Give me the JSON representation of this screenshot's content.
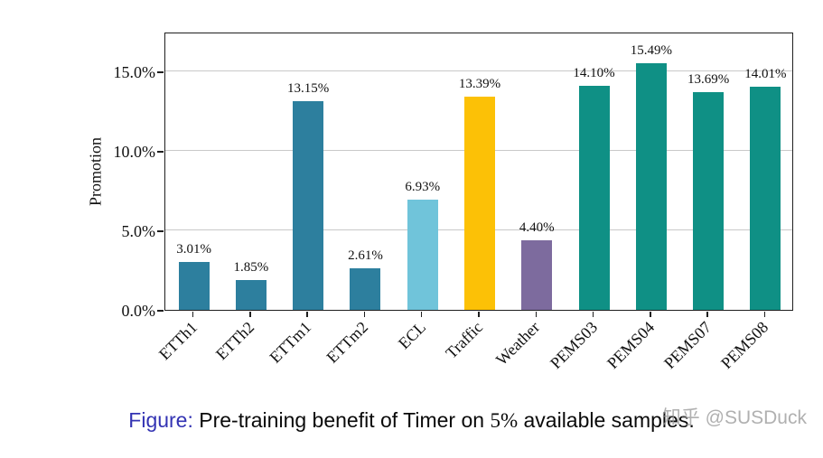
{
  "chart_data": {
    "type": "bar",
    "title": "",
    "xlabel": "",
    "ylabel": "Promotion",
    "categories": [
      "ETTh1",
      "ETTh2",
      "ETTm1",
      "ETTm2",
      "ECL",
      "Traffic",
      "Weather",
      "PEMS03",
      "PEMS04",
      "PEMS07",
      "PEMS08"
    ],
    "values": [
      3.01,
      1.85,
      13.15,
      2.61,
      6.93,
      13.39,
      4.4,
      14.1,
      15.49,
      13.69,
      14.01
    ],
    "value_labels": [
      "3.01%",
      "1.85%",
      "13.15%",
      "2.61%",
      "6.93%",
      "13.39%",
      "4.40%",
      "14.10%",
      "15.49%",
      "13.69%",
      "14.01%"
    ],
    "bar_colors": [
      "#2d7f9e",
      "#2d7f9e",
      "#2d7f9e",
      "#2d7f9e",
      "#70c4da",
      "#fcc106",
      "#7d6b9e",
      "#0f9085",
      "#0f9085",
      "#0f9085",
      "#0f9085"
    ],
    "ylim": [
      0,
      17.5
    ],
    "yticks": [
      {
        "value": 0,
        "label": "0.0%"
      },
      {
        "value": 5,
        "label": "5.0%"
      },
      {
        "value": 10,
        "label": "10.0%"
      },
      {
        "value": 15,
        "label": "15.0%"
      }
    ],
    "grid": "horizontal",
    "legend": "none"
  },
  "caption": {
    "label": "Figure:",
    "pre": "Pre-training benefit of Timer on",
    "math": "5%",
    "post": "available samples."
  },
  "watermark": {
    "text": "知乎 @SUSDuck"
  },
  "colors": {
    "caption_label": "#3333b3",
    "gridline": "#c9c9c9",
    "axis": "#1f1f1f",
    "watermark": "#969696"
  }
}
